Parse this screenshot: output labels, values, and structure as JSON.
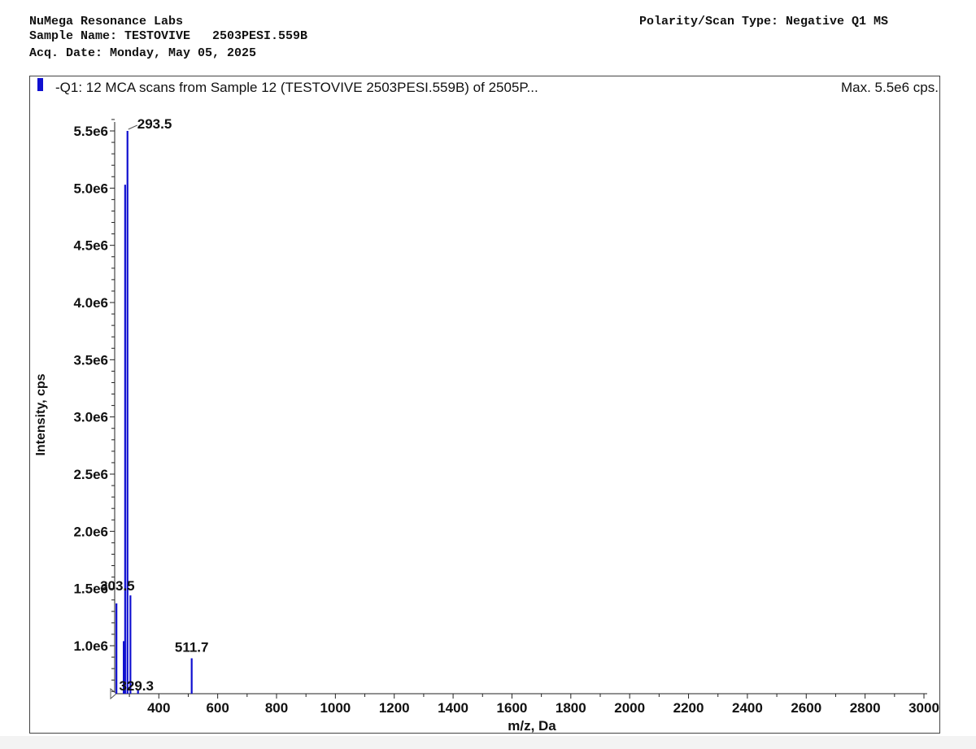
{
  "header": {
    "lab": "NuMega Resonance Labs",
    "sample_name": "Sample Name: TESTOVIVE   2503PESI.559B",
    "acq_date": "Acq. Date: Monday, May 05, 2025",
    "polarity": "Polarity/Scan Type: Negative Q1 MS"
  },
  "chart_data": {
    "type": "bar",
    "title": "-Q1: 12 MCA scans from Sample 12 (TESTOVIVE   2503PESI.559B) of 2505P...",
    "max_label": "Max. 5.5e6 cps.",
    "xlabel": "m/z, Da",
    "ylabel": "Intensity, cps",
    "xlim": [
      250,
      3000
    ],
    "ylim": [
      580000,
      5600000
    ],
    "x_ticks": [
      "400",
      "600",
      "800",
      "1000",
      "1200",
      "1400",
      "1600",
      "1800",
      "2000",
      "2200",
      "2400",
      "2600",
      "2800",
      "3000"
    ],
    "y_ticks": [
      "1.0e6",
      "1.5e6",
      "2.0e6",
      "2.5e6",
      "3.0e6",
      "3.5e6",
      "4.0e6",
      "4.5e6",
      "5.0e6",
      "5.5e6"
    ],
    "series_color": "#1010d0",
    "peaks": [
      {
        "x": 256,
        "y": 1370000,
        "label": ""
      },
      {
        "x": 280.7,
        "y": 1040000,
        "label": ""
      },
      {
        "x": 285.5,
        "y": 5030000,
        "label": ""
      },
      {
        "x": 293.5,
        "y": 5500000,
        "label": "293.5"
      },
      {
        "x": 303.5,
        "y": 1440000,
        "label": "303.5"
      },
      {
        "x": 329.3,
        "y": 610000,
        "label": "329.3"
      },
      {
        "x": 511.7,
        "y": 890000,
        "label": "511.7"
      }
    ]
  }
}
